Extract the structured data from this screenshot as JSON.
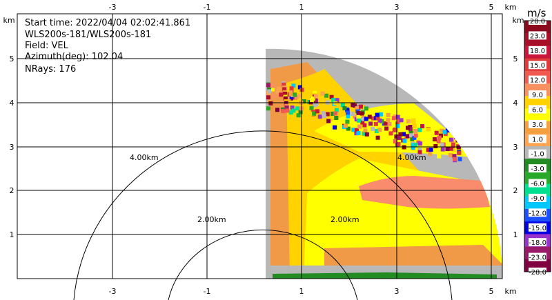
{
  "info": {
    "start_time": "Start time: 2022/04/04 02:02:41.861",
    "instrument": "WLS200s-181/WLS200s-181",
    "field": "Field: VEL",
    "azimuth": "Azimuth(deg): 102.04",
    "nrays": "NRays: 176"
  },
  "chart_data": {
    "type": "heatmap",
    "x_ticks": [
      "-3",
      "-1",
      "1",
      "3",
      "5"
    ],
    "y_ticks": [
      "1",
      "2",
      "3",
      "4",
      "5"
    ],
    "x_unit": "km",
    "y_unit": "km",
    "xlim": [
      -5.0,
      5.4
    ],
    "ylim": [
      0,
      5.4
    ],
    "range_rings": [
      {
        "radius_km": 2,
        "label": "2.00km"
      },
      {
        "radius_km": 4,
        "label": "4.00km"
      }
    ],
    "colorbar": {
      "unit": "m/s",
      "labels": [
        "28.0",
        "23.0",
        "18.0",
        "15.0",
        "12.0",
        "9.0",
        "6.0",
        "3.0",
        "1.0",
        "-1.0",
        "-3.0",
        "-6.0",
        "-9.0",
        "-12.0",
        "-15.0",
        "-18.0",
        "-23.0",
        "-28.0"
      ],
      "colors": [
        "#8b0a1e",
        "#a8102a",
        "#c8173a",
        "#e03b3b",
        "#f05a50",
        "#f89060",
        "#ffd200",
        "#ffff00",
        "#f5a040",
        "#ffa552",
        "#b8b8b8",
        "#228b22",
        "#2aa82a",
        "#00e090",
        "#00c8ff",
        "#1a50ff",
        "#0000e0",
        "#9932cc",
        "#9a1a6a",
        "#800040"
      ]
    },
    "field_colors": {
      "gray": "#b8b8b8",
      "orange": "#f09a48",
      "gold": "#ffd200",
      "yellow": "#ffff00",
      "salmon": "#f88c6c",
      "green": "#228b22"
    }
  }
}
